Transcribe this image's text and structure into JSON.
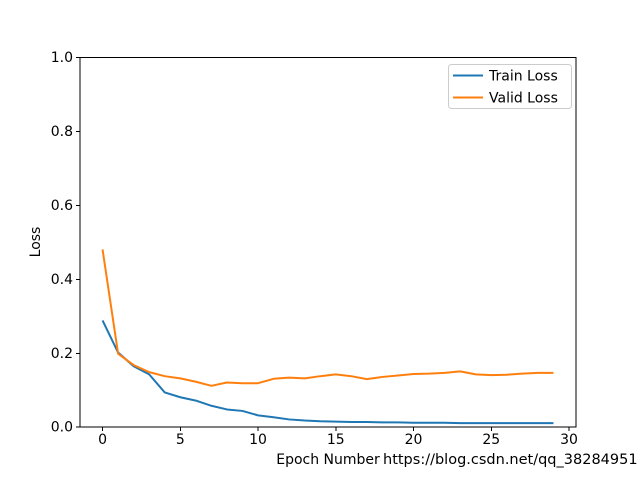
{
  "figure": {
    "watermark": "https://blog.csdn.net/qq_38284951"
  },
  "chart_data": {
    "type": "line",
    "title": "",
    "xlabel": "Epoch Number",
    "ylabel": "Loss",
    "x": [
      0,
      1,
      2,
      3,
      4,
      5,
      6,
      7,
      8,
      9,
      10,
      11,
      12,
      13,
      14,
      15,
      16,
      17,
      18,
      19,
      20,
      21,
      22,
      23,
      24,
      25,
      26,
      27,
      28,
      29
    ],
    "series": [
      {
        "name": "Train Loss",
        "color": "#1f77b4",
        "values": [
          0.289,
          0.202,
          0.165,
          0.143,
          0.094,
          0.081,
          0.072,
          0.058,
          0.048,
          0.044,
          0.032,
          0.027,
          0.021,
          0.018,
          0.016,
          0.015,
          0.014,
          0.014,
          0.013,
          0.013,
          0.012,
          0.012,
          0.012,
          0.011,
          0.011,
          0.011,
          0.011,
          0.011,
          0.011,
          0.011
        ]
      },
      {
        "name": "Valid Loss",
        "color": "#ff7f0e",
        "values": [
          0.481,
          0.199,
          0.168,
          0.149,
          0.138,
          0.132,
          0.123,
          0.112,
          0.121,
          0.119,
          0.119,
          0.131,
          0.134,
          0.132,
          0.138,
          0.143,
          0.138,
          0.13,
          0.136,
          0.14,
          0.144,
          0.145,
          0.147,
          0.151,
          0.143,
          0.141,
          0.142,
          0.145,
          0.147,
          0.147
        ]
      }
    ],
    "xlim": [
      -1.45,
      30.45
    ],
    "ylim": [
      0.0,
      1.0
    ],
    "xticks": [
      0,
      5,
      10,
      15,
      20,
      25,
      30
    ],
    "xtick_labels": [
      "0",
      "5",
      "10",
      "15",
      "20",
      "25",
      "30"
    ],
    "yticks": [
      0.0,
      0.2,
      0.4,
      0.6,
      0.8,
      1.0
    ],
    "ytick_labels": [
      "0.0",
      "0.2",
      "0.4",
      "0.6",
      "0.8",
      "1.0"
    ],
    "grid": false,
    "legend_position": "upper right",
    "legend_entries": [
      "Train Loss",
      "Valid Loss"
    ]
  },
  "colors": {
    "axis": "#000000",
    "legend_border": "#cccccc",
    "watermark": "#e9e9e9",
    "background": "#ffffff"
  }
}
